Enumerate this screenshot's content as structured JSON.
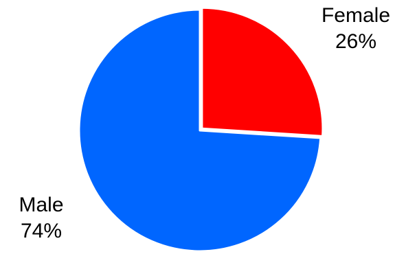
{
  "chart_data": {
    "type": "pie",
    "title": "",
    "slices": [
      {
        "name": "Female",
        "value": 26,
        "label": "26%",
        "color": "#ff0000"
      },
      {
        "name": "Male",
        "value": 74,
        "label": "74%",
        "color": "#0066ff"
      }
    ],
    "start_angle_deg": 0,
    "direction": "clockwise",
    "legend": "none",
    "slice_border_color": "#ffffff"
  }
}
